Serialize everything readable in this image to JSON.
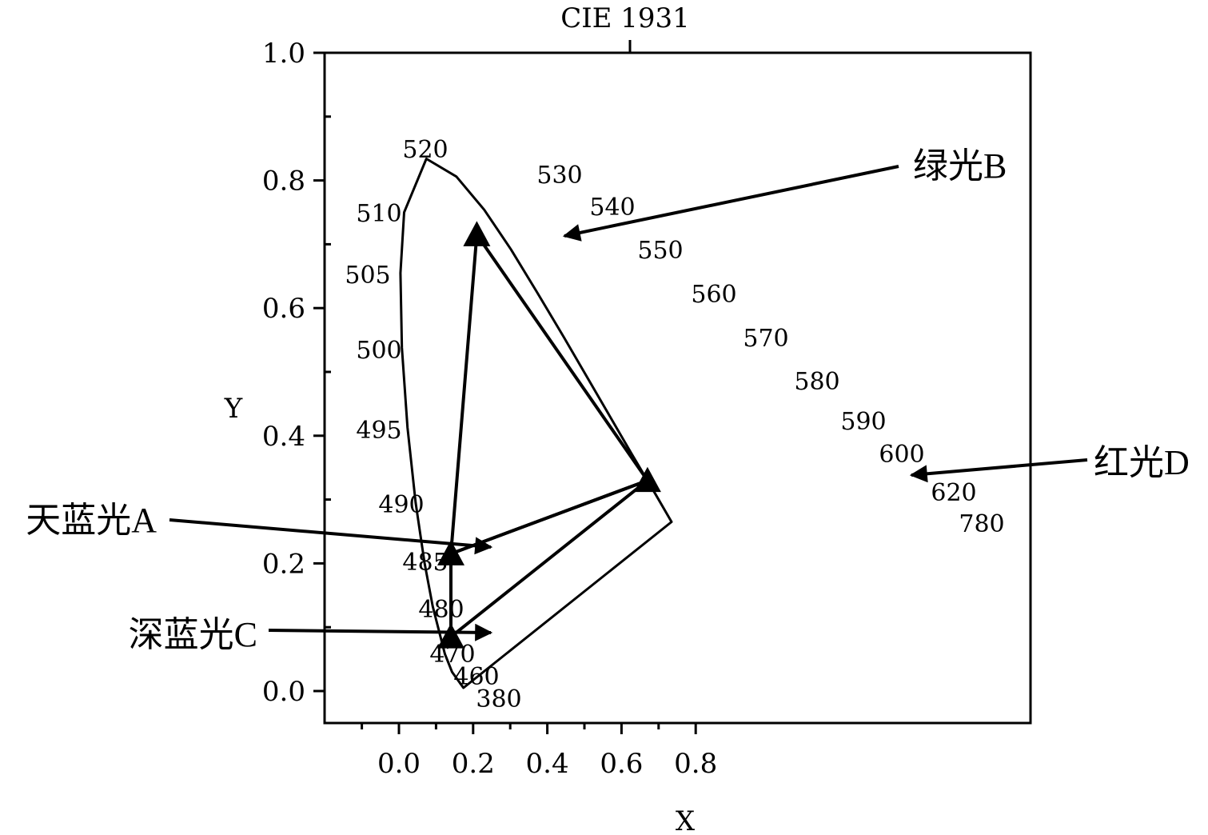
{
  "chart_data": {
    "type": "scatter",
    "title": "CIE 1931",
    "xlabel": "X",
    "ylabel": "Y",
    "xlim": [
      -0.1,
      0.85
    ],
    "ylim": [
      -0.05,
      1.0
    ],
    "x_ticks": [
      "0.0",
      "0.2",
      "0.4",
      "0.6",
      "0.8"
    ],
    "y_ticks": [
      "0.0",
      "0.2",
      "0.4",
      "0.6",
      "0.8",
      "1.0"
    ],
    "spectral_locus": [
      {
        "x": 0.174,
        "y": 0.005,
        "wl": "380"
      },
      {
        "x": 0.143,
        "y": 0.03,
        "wl": "460"
      },
      {
        "x": 0.124,
        "y": 0.058,
        "wl": "470"
      },
      {
        "x": 0.091,
        "y": 0.133,
        "wl": "480"
      },
      {
        "x": 0.069,
        "y": 0.201,
        "wl": "485"
      },
      {
        "x": 0.045,
        "y": 0.295,
        "wl": "490"
      },
      {
        "x": 0.023,
        "y": 0.413,
        "wl": "495"
      },
      {
        "x": 0.008,
        "y": 0.538,
        "wl": "500"
      },
      {
        "x": 0.004,
        "y": 0.655,
        "wl": "505"
      },
      {
        "x": 0.014,
        "y": 0.75,
        "wl": "510"
      },
      {
        "x": 0.074,
        "y": 0.834,
        "wl": "520"
      },
      {
        "x": 0.155,
        "y": 0.806,
        "wl": "530"
      },
      {
        "x": 0.23,
        "y": 0.754,
        "wl": "540"
      },
      {
        "x": 0.302,
        "y": 0.692,
        "wl": "550"
      },
      {
        "x": 0.373,
        "y": 0.624,
        "wl": "560"
      },
      {
        "x": 0.444,
        "y": 0.555,
        "wl": "570"
      },
      {
        "x": 0.512,
        "y": 0.487,
        "wl": "580"
      },
      {
        "x": 0.575,
        "y": 0.424,
        "wl": "590"
      },
      {
        "x": 0.627,
        "y": 0.372,
        "wl": "600"
      },
      {
        "x": 0.692,
        "y": 0.308,
        "wl": "620"
      },
      {
        "x": 0.735,
        "y": 0.265,
        "wl": "780"
      }
    ],
    "points": [
      {
        "name": "天蓝光A",
        "x": 0.14,
        "y": 0.215
      },
      {
        "name": "绿光B",
        "x": 0.21,
        "y": 0.715
      },
      {
        "name": "深蓝光C",
        "x": 0.14,
        "y": 0.085
      },
      {
        "name": "红光D",
        "x": 0.67,
        "y": 0.33
      }
    ],
    "triangle_1": [
      "天蓝光A",
      "绿光B",
      "红光D"
    ],
    "triangle_2": [
      "天蓝光A",
      "深蓝光C",
      "红光D"
    ],
    "grid": false
  }
}
